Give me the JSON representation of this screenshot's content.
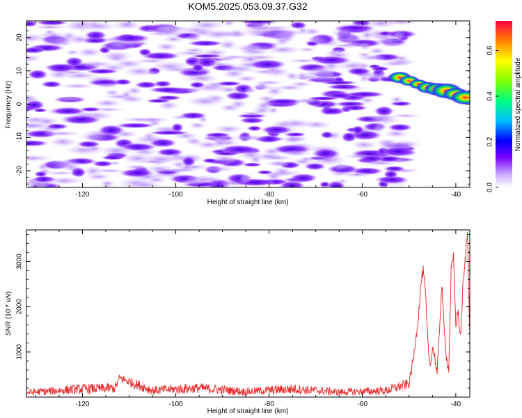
{
  "title": "KOM5.2025.053.09.37.G32",
  "chart_data": [
    {
      "type": "heatmap",
      "xlabel": "Height of straight line (km)",
      "ylabel": "Frequency (Hz)",
      "xlim": [
        -132,
        -37
      ],
      "ylim": [
        -25,
        25
      ],
      "xticks": [
        -120,
        -100,
        -80,
        -60,
        -40
      ],
      "yticks": [
        -20,
        -10,
        0,
        10,
        20
      ],
      "colorbar": {
        "label": "Normalized spectral amplitude",
        "range": [
          0,
          0.73
        ],
        "ticks": [
          0.0,
          0.2,
          0.4,
          0.6
        ]
      },
      "ridge": [
        {
          "x": -52,
          "y": 8,
          "z": 0.45
        },
        {
          "x": -50,
          "y": 7,
          "z": 0.35
        },
        {
          "x": -48,
          "y": 6,
          "z": 0.3
        },
        {
          "x": -46,
          "y": 5,
          "z": 0.45
        },
        {
          "x": -44,
          "y": 4.5,
          "z": 0.55
        },
        {
          "x": -42,
          "y": 4,
          "z": 0.73
        },
        {
          "x": -40,
          "y": 3,
          "z": 0.55
        },
        {
          "x": -38,
          "y": 2,
          "z": 0.65
        }
      ]
    },
    {
      "type": "line",
      "xlabel": "Height of straight line (km)",
      "ylabel": "SNR (10 * v/v)",
      "xlim": [
        -132,
        -37
      ],
      "ylim": [
        0,
        3700
      ],
      "xticks": [
        -120,
        -100,
        -80,
        -60,
        -40
      ],
      "yticks": [
        1000,
        2000,
        3000
      ],
      "color": "#e83030",
      "series": [
        {
          "x": [
            -132,
            -120,
            -113,
            -112,
            -105,
            -95,
            -85,
            -75,
            -65,
            -55,
            -50,
            -49,
            -48,
            -47.5,
            -47,
            -46.5,
            -46,
            -45.5,
            -45,
            -44.5,
            -44,
            -43.5,
            -43,
            -42.5,
            -42,
            -41.5,
            -41,
            -40.5,
            -40,
            -39.5,
            -39,
            -38.5,
            -38,
            -37.5,
            -37
          ],
          "y": [
            100,
            180,
            200,
            420,
            150,
            200,
            120,
            180,
            110,
            140,
            300,
            900,
            1800,
            2500,
            2800,
            2300,
            1200,
            700,
            1100,
            900,
            500,
            1500,
            2500,
            1500,
            900,
            600,
            2800,
            3100,
            1600,
            1900,
            1300,
            2400,
            3000,
            3700,
            1400
          ]
        }
      ]
    }
  ]
}
